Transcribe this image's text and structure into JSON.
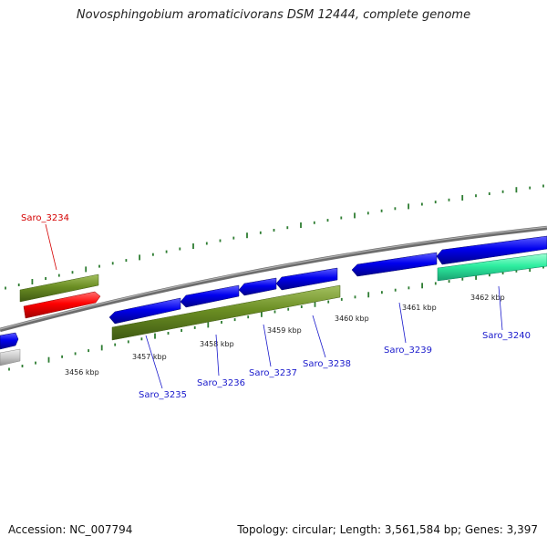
{
  "title": "Novosphingobium aromaticivorans DSM 12444, complete genome",
  "accession": "Accession: NC_007794",
  "summary": "Topology: circular; Length: 3,561,584 bp; Genes: 3,397",
  "ruler_labels": [
    "3456 kbp",
    "3457 kbp",
    "3458 kbp",
    "3459 kbp",
    "3460 kbp",
    "3461 kbp",
    "3462 kbp"
  ],
  "genes": [
    {
      "label": "Saro_3234",
      "color": "#d40000"
    },
    {
      "label": "Saro_3235",
      "color": "#1a1acc"
    },
    {
      "label": "Saro_3236",
      "color": "#1a1acc"
    },
    {
      "label": "Saro_3237",
      "color": "#1a1acc"
    },
    {
      "label": "Saro_3238",
      "color": "#1a1acc"
    },
    {
      "label": "Saro_3239",
      "color": "#1a1acc"
    },
    {
      "label": "Saro_3240",
      "color": "#1a1acc"
    }
  ],
  "colors": {
    "cds_forward": "#0000ee",
    "cds_reverse": "#ff0000",
    "gene_track": "#6b8e23",
    "rna": "#2eeea0",
    "backbone": "#808080",
    "ruler": "#2e7d32"
  }
}
